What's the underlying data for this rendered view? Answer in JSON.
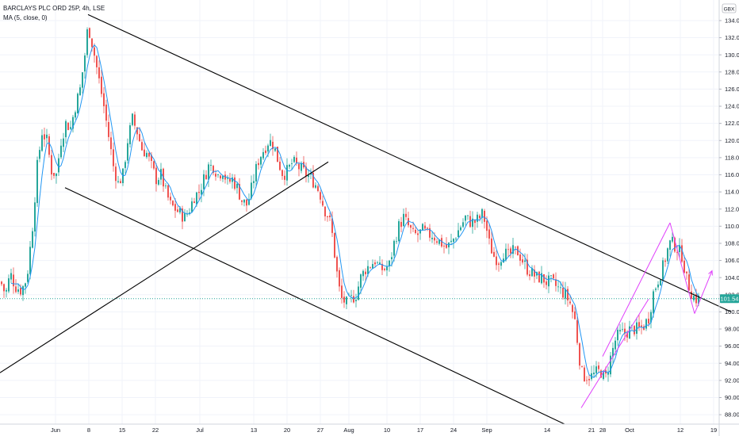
{
  "legend": {
    "symbol_line": "BARCLAYS PLC ORD 25P, 4h, LSE",
    "ma_line": "MA (5, close, 0)"
  },
  "currency_badge": "GBX",
  "price_label": "101.54",
  "colors": {
    "up": "#26a69a",
    "down": "#ef5350",
    "ma": "#2196f3",
    "trend": "#000000",
    "pattern": "#e040fb",
    "price_label_bg": "#26a69a"
  },
  "chart_data": {
    "type": "candlestick",
    "title": "BARCLAYS PLC ORD 25P, 4h, LSE",
    "indicator": "MA (5, close, 0)",
    "ylim": [
      86.9,
      136.4
    ],
    "y_ticks": [
      88,
      90,
      92,
      94,
      96,
      98,
      100,
      102,
      104,
      106,
      108,
      110,
      112,
      114,
      116,
      118,
      120,
      122,
      124,
      126,
      128,
      130,
      132,
      134
    ],
    "x_ticks": [
      "Jun",
      "8",
      "15",
      "22",
      "Jul",
      "13",
      "20",
      "27",
      "Aug",
      "10",
      "17",
      "24",
      "Sep",
      "14",
      "21",
      "28",
      "Oct",
      "12",
      "19"
    ],
    "last_price": 101.54,
    "close_path": [
      [
        0,
        103.5
      ],
      [
        6,
        102
      ],
      [
        12,
        104.5
      ],
      [
        18,
        103
      ],
      [
        26,
        102.5
      ],
      [
        33,
        104
      ],
      [
        40,
        110
      ],
      [
        46,
        117
      ],
      [
        52,
        121
      ],
      [
        58,
        120
      ],
      [
        64,
        116.5
      ],
      [
        70,
        116
      ],
      [
        76,
        120
      ],
      [
        82,
        122
      ],
      [
        88,
        121.5
      ],
      [
        94,
        124
      ],
      [
        100,
        126
      ],
      [
        106,
        130
      ],
      [
        110,
        133.5
      ],
      [
        116,
        131
      ],
      [
        120,
        129
      ],
      [
        124,
        127
      ],
      [
        130,
        124
      ],
      [
        136,
        120.5
      ],
      [
        142,
        117
      ],
      [
        148,
        115
      ],
      [
        154,
        116
      ],
      [
        160,
        120
      ],
      [
        166,
        122.5
      ],
      [
        172,
        121
      ],
      [
        178,
        119
      ],
      [
        184,
        118.5
      ],
      [
        190,
        117
      ],
      [
        196,
        115.5
      ],
      [
        202,
        116
      ],
      [
        208,
        114
      ],
      [
        214,
        112.5
      ],
      [
        220,
        112
      ],
      [
        226,
        111.5
      ],
      [
        232,
        111
      ],
      [
        238,
        112
      ],
      [
        244,
        113.5
      ],
      [
        250,
        114
      ],
      [
        256,
        115.5
      ],
      [
        262,
        117
      ],
      [
        268,
        117
      ],
      [
        274,
        116
      ],
      [
        280,
        116.5
      ],
      [
        286,
        115
      ],
      [
        292,
        115.5
      ],
      [
        298,
        114.5
      ],
      [
        304,
        113
      ],
      [
        310,
        112.5
      ],
      [
        314,
        113.5
      ],
      [
        320,
        116
      ],
      [
        326,
        118
      ],
      [
        332,
        119
      ],
      [
        338,
        120
      ],
      [
        344,
        119.5
      ],
      [
        350,
        117.5
      ],
      [
        356,
        116
      ],
      [
        362,
        116.5
      ],
      [
        368,
        117.5
      ],
      [
        374,
        117
      ],
      [
        380,
        116.5
      ],
      [
        386,
        116
      ],
      [
        392,
        115.5
      ],
      [
        396,
        115
      ],
      [
        402,
        114
      ],
      [
        408,
        112
      ],
      [
        414,
        111
      ],
      [
        418,
        109
      ],
      [
        422,
        106
      ],
      [
        426,
        103
      ],
      [
        430,
        101.5
      ],
      [
        436,
        101
      ],
      [
        442,
        101.5
      ],
      [
        448,
        102
      ],
      [
        454,
        104
      ],
      [
        460,
        105
      ],
      [
        466,
        105.5
      ],
      [
        472,
        106
      ],
      [
        478,
        105
      ],
      [
        484,
        105
      ],
      [
        490,
        105.5
      ],
      [
        496,
        108
      ],
      [
        502,
        110
      ],
      [
        508,
        111
      ],
      [
        514,
        110
      ],
      [
        520,
        109
      ],
      [
        526,
        109
      ],
      [
        532,
        109.5
      ],
      [
        538,
        109
      ],
      [
        544,
        109
      ],
      [
        550,
        108.5
      ],
      [
        556,
        108
      ],
      [
        562,
        107.5
      ],
      [
        568,
        108
      ],
      [
        574,
        109
      ],
      [
        580,
        110
      ],
      [
        586,
        111
      ],
      [
        592,
        110.5
      ],
      [
        598,
        110.5
      ],
      [
        604,
        111
      ],
      [
        608,
        111.5
      ],
      [
        612,
        110
      ],
      [
        616,
        108
      ],
      [
        622,
        106.5
      ],
      [
        628,
        106
      ],
      [
        634,
        107
      ],
      [
        640,
        106.5
      ],
      [
        646,
        107
      ],
      [
        652,
        107
      ],
      [
        658,
        106
      ],
      [
        664,
        105
      ],
      [
        670,
        104.5
      ],
      [
        676,
        104
      ],
      [
        682,
        104
      ],
      [
        688,
        103.5
      ],
      [
        694,
        103.5
      ],
      [
        700,
        103
      ],
      [
        706,
        102.5
      ],
      [
        712,
        102
      ],
      [
        718,
        101
      ],
      [
        724,
        99
      ],
      [
        728,
        96
      ],
      [
        732,
        93
      ],
      [
        736,
        92.5
      ],
      [
        740,
        92.5
      ],
      [
        746,
        92.5
      ],
      [
        752,
        93
      ],
      [
        758,
        93
      ],
      [
        762,
        92
      ],
      [
        766,
        93.5
      ],
      [
        770,
        95
      ],
      [
        776,
        97
      ],
      [
        782,
        97.5
      ],
      [
        788,
        97.5
      ],
      [
        794,
        98
      ],
      [
        800,
        98
      ],
      [
        806,
        98
      ],
      [
        812,
        98.5
      ],
      [
        818,
        99.5
      ],
      [
        822,
        102
      ],
      [
        826,
        103
      ],
      [
        830,
        104
      ],
      [
        836,
        105.5
      ],
      [
        840,
        107
      ],
      [
        844,
        108
      ],
      [
        848,
        108
      ],
      [
        852,
        107.5
      ],
      [
        856,
        107
      ],
      [
        860,
        106.5
      ],
      [
        864,
        104
      ],
      [
        868,
        103
      ],
      [
        872,
        102
      ],
      [
        876,
        101.5
      ],
      [
        880,
        101.54
      ]
    ],
    "annotations": [
      {
        "name": "channel-upper-line",
        "type": "trendline",
        "from": [
          111,
          134.7
        ],
        "to": [
          922,
          100
        ]
      },
      {
        "name": "channel-lower-line",
        "type": "trendline",
        "from": [
          82,
          114.5
        ],
        "to": [
          712,
          86.9
        ]
      },
      {
        "name": "rising-support-line",
        "type": "trendline",
        "from": [
          0,
          92.9
        ],
        "to": [
          414,
          117.5
        ]
      },
      {
        "name": "wedge-lower-line",
        "type": "trendline",
        "from": [
          733,
          88.8
        ],
        "to": [
          818,
          101.5
        ]
      },
      {
        "name": "wedge-upper-line",
        "type": "trendline",
        "from": [
          760,
          94.8
        ],
        "to": [
          845,
          110.4
        ]
      },
      {
        "name": "wedge-right-line",
        "type": "trendline",
        "from": [
          845,
          110.4
        ],
        "to": [
          876,
          99.8
        ]
      },
      {
        "name": "projection-arrow",
        "type": "arrow",
        "from": [
          876,
          99.8
        ],
        "to": [
          898,
          104.8
        ]
      }
    ]
  }
}
